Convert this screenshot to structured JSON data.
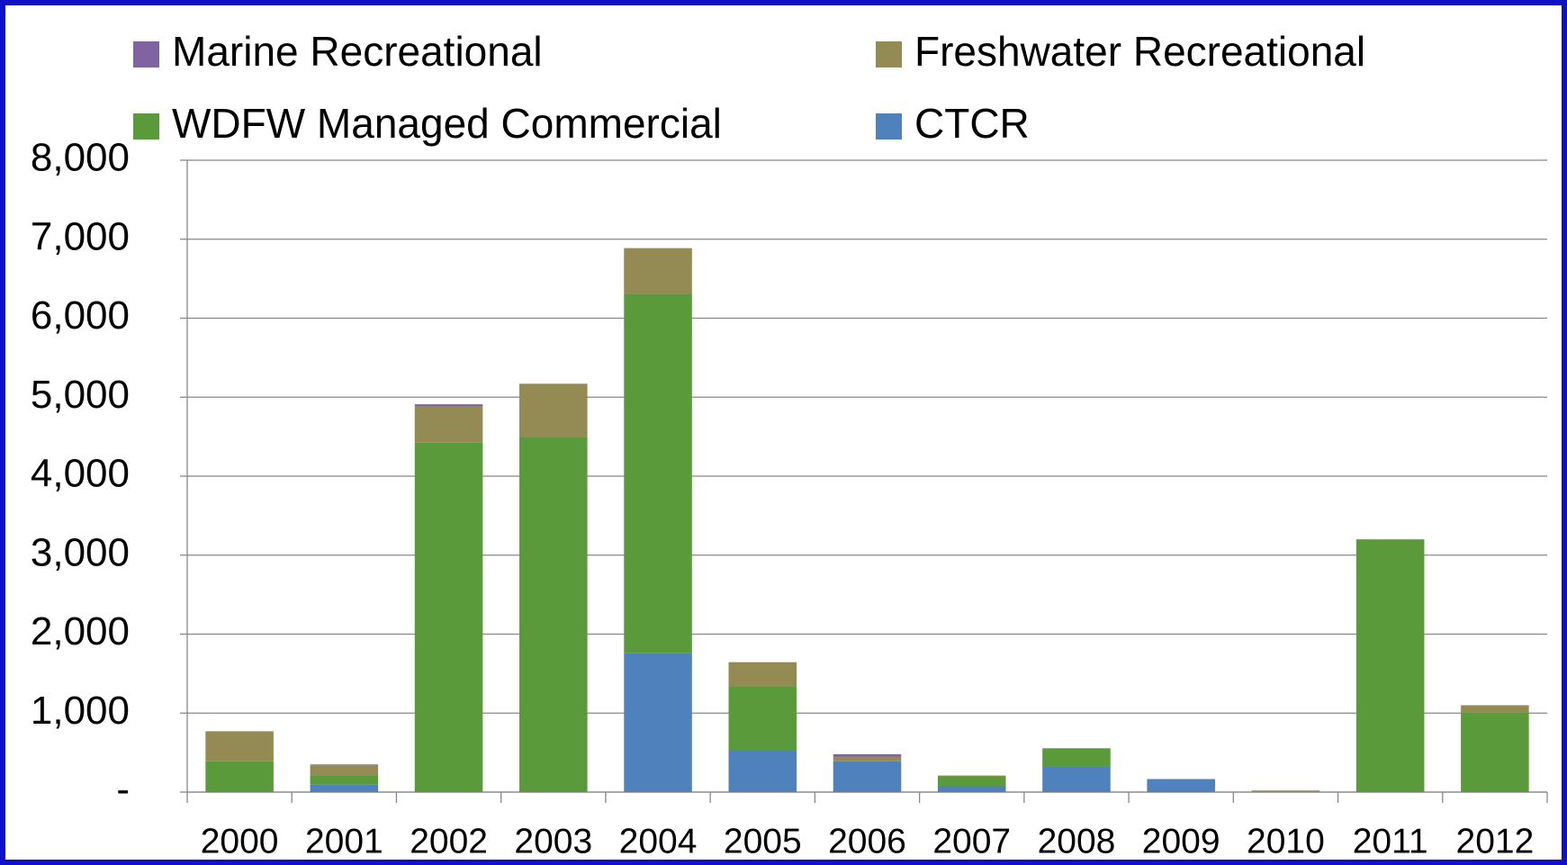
{
  "chart_data": {
    "type": "bar",
    "stacked": true,
    "categories": [
      "2000",
      "2001",
      "2002",
      "2003",
      "2004",
      "2005",
      "2006",
      "2007",
      "2008",
      "2009",
      "2010",
      "2011",
      "2012"
    ],
    "series": [
      {
        "name": "Marine Recreational",
        "color": "#8064a2",
        "values": [
          0,
          10,
          30,
          0,
          0,
          0,
          30,
          0,
          0,
          0,
          0,
          0,
          0
        ]
      },
      {
        "name": "Freshwater Recreational",
        "color": "#948a54",
        "values": [
          380,
          125,
          455,
          680,
          580,
          305,
          60,
          10,
          0,
          0,
          20,
          0,
          90
        ]
      },
      {
        "name": "WDFW Managed Commercial",
        "color": "#5a9a3a",
        "values": [
          390,
          115,
          4425,
          4490,
          4550,
          810,
          0,
          120,
          225,
          0,
          0,
          3200,
          1010
        ]
      },
      {
        "name": "CTCR",
        "color": "#4f81bd",
        "values": [
          0,
          100,
          0,
          0,
          1757,
          530,
          390,
          80,
          330,
          165,
          0,
          0,
          0
        ]
      }
    ],
    "ylim": [
      0,
      8000
    ],
    "yticks": [
      {
        "value": 0,
        "label": "-"
      },
      {
        "value": 1000,
        "label": "1,000"
      },
      {
        "value": 2000,
        "label": "2,000"
      },
      {
        "value": 3000,
        "label": "3,000"
      },
      {
        "value": 4000,
        "label": "4,000"
      },
      {
        "value": 5000,
        "label": "5,000"
      },
      {
        "value": 6000,
        "label": "6,000"
      },
      {
        "value": 7000,
        "label": "7,000"
      },
      {
        "value": 8000,
        "label": "8,000"
      }
    ],
    "grid": true,
    "legend": "top"
  }
}
